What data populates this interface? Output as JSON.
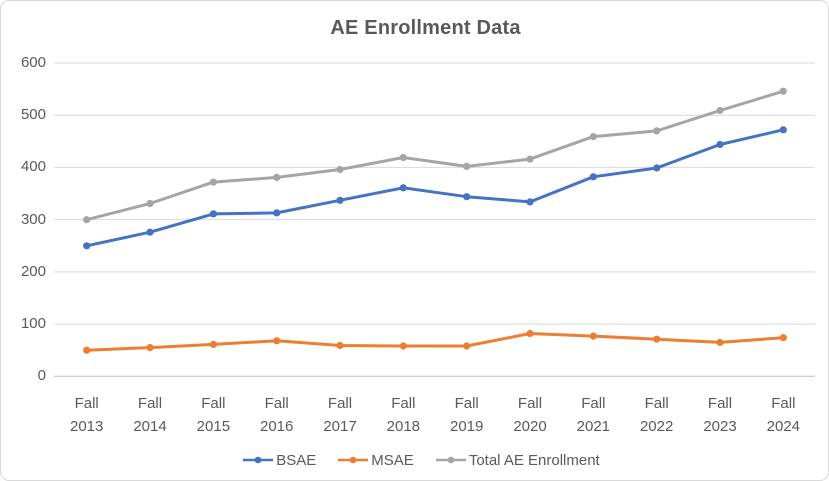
{
  "title": "AE Enrollment Data",
  "chart_data": {
    "type": "line",
    "title": "AE Enrollment Data",
    "categories": [
      "Fall 2013",
      "Fall 2014",
      "Fall 2015",
      "Fall 2016",
      "Fall 2017",
      "Fall 2018",
      "Fall 2019",
      "Fall 2020",
      "Fall 2021",
      "Fall 2022",
      "Fall 2023",
      "Fall 2024"
    ],
    "series": [
      {
        "name": "BSAE",
        "color": "#4472C4",
        "values": [
          250,
          276,
          311,
          313,
          337,
          361,
          344,
          334,
          382,
          399,
          444,
          472
        ]
      },
      {
        "name": "MSAE",
        "color": "#ED7D31",
        "values": [
          50,
          55,
          61,
          68,
          59,
          58,
          58,
          82,
          77,
          71,
          65,
          74
        ]
      },
      {
        "name": "Total AE Enrollment",
        "color": "#A5A5A5",
        "values": [
          300,
          331,
          372,
          381,
          396,
          419,
          402,
          416,
          459,
          470,
          509,
          546
        ]
      }
    ],
    "ylim": [
      0,
      600
    ],
    "yticks": [
      0,
      100,
      200,
      300,
      400,
      500,
      600
    ],
    "grid": true,
    "marker": "circle",
    "legend_position": "bottom"
  },
  "styles": {
    "text_color": "#595959",
    "gridline_color": "#D9D9D9",
    "axis_line_color": "#BFBFBF",
    "background": "#FFFFFF",
    "border_color": "#D9D9D9"
  }
}
